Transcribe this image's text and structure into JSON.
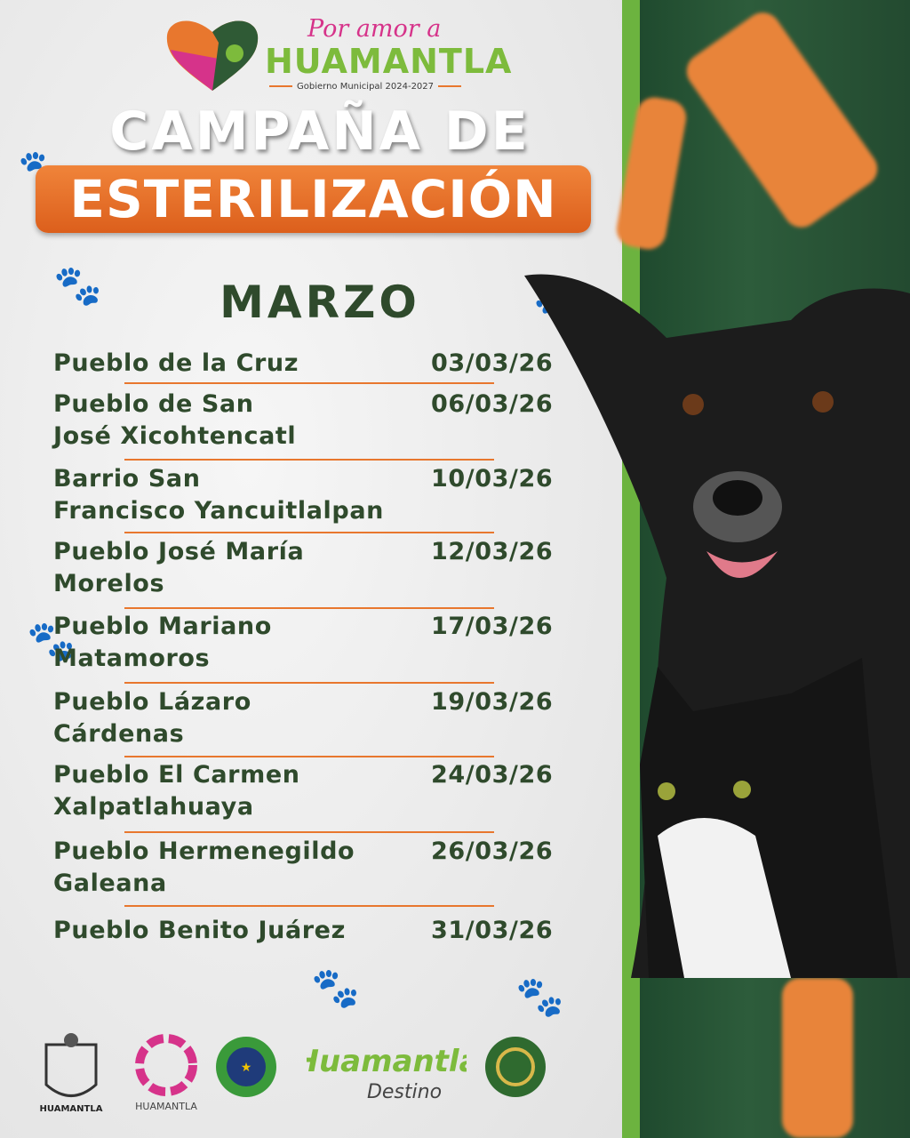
{
  "header": {
    "logo_script": "Por amor a",
    "logo_name": "HUAMANTLA",
    "logo_sub": "Gobierno Municipal 2024-2027"
  },
  "title": {
    "line1": "CAMPAÑA DE",
    "line2": "ESTERILIZACIÓN"
  },
  "month": "MARZO",
  "schedule": [
    {
      "place": "Pueblo de la Cruz",
      "date": "03/03/26"
    },
    {
      "place": "Pueblo de San José Xicohtencatl",
      "date": "06/03/26"
    },
    {
      "place": "Barrio San Francisco Yancuitlalpan",
      "date": "10/03/26"
    },
    {
      "place": "Pueblo José María Morelos",
      "date": "12/03/26"
    },
    {
      "place": "Pueblo Mariano Matamoros",
      "date": "17/03/26"
    },
    {
      "place": "Pueblo Lázaro Cárdenas",
      "date": "19/03/26"
    },
    {
      "place": "Pueblo El Carmen Xalpatlahuaya",
      "date": "24/03/26"
    },
    {
      "place": "Pueblo Hermenegildo Galeana",
      "date": "26/03/26"
    },
    {
      "place": "Pueblo Benito Juárez",
      "date": "31/03/26"
    }
  ],
  "footer": {
    "logos": [
      "HUAMANTLA GOBIERNO MUNICIPAL",
      "HUAMANTLA PUEBLO MÁGICO",
      "HUAMANTLA GUINNESS WORLD RECORDS",
      "TODO EL AÑO Huamantla ES TU Destino",
      "Seal"
    ]
  },
  "colors": {
    "text": "#2f4a2c",
    "accent": "#e8772e",
    "green": "#6cb33f",
    "panel": "#2d5c3b"
  }
}
